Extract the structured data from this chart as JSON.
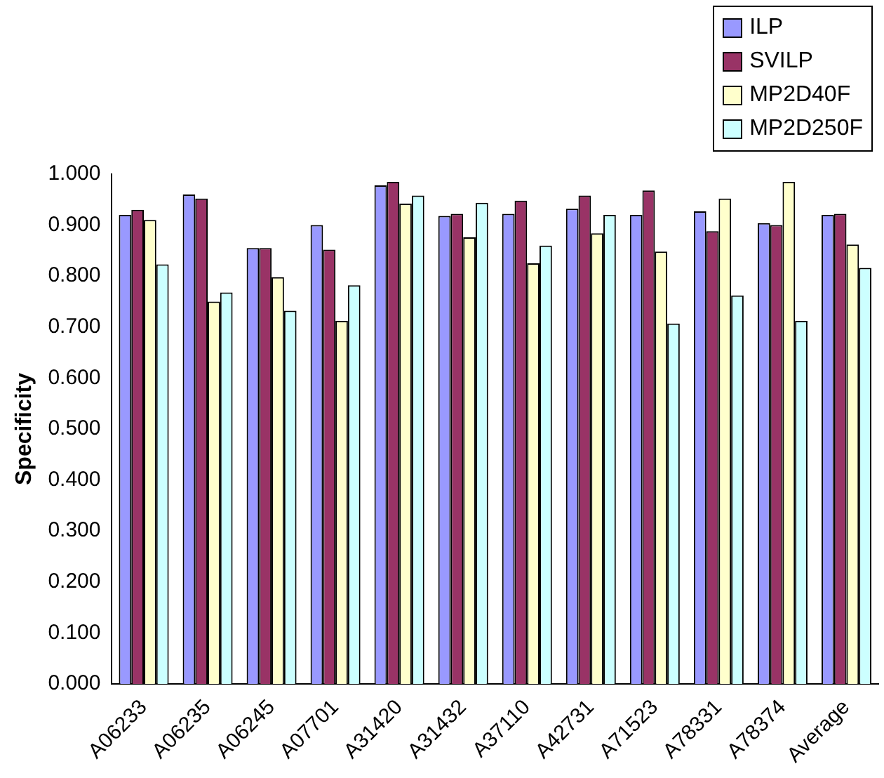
{
  "chart_data": {
    "type": "bar",
    "ylabel": "Specificity",
    "categories": [
      "A06233",
      "A06235",
      "A06245",
      "A07701",
      "A31420",
      "A31432",
      "A37110",
      "A42731",
      "A71523",
      "A78331",
      "A78374",
      "Average"
    ],
    "series": [
      {
        "name": "ILP",
        "color": "#9999ff",
        "values": [
          0.92,
          0.96,
          0.855,
          0.9,
          0.978,
          0.918,
          0.922,
          0.932,
          0.92,
          0.927,
          0.904,
          0.92
        ]
      },
      {
        "name": "SVILP",
        "color": "#993366",
        "values": [
          0.93,
          0.952,
          0.855,
          0.852,
          0.985,
          0.922,
          0.948,
          0.958,
          0.968,
          0.888,
          0.9,
          0.922
        ]
      },
      {
        "name": "MP2D40F",
        "color": "#ffffcc",
        "values": [
          0.91,
          0.75,
          0.798,
          0.712,
          0.942,
          0.876,
          0.825,
          0.884,
          0.848,
          0.952,
          0.985,
          0.862
        ]
      },
      {
        "name": "MP2D250F",
        "color": "#ccffff",
        "values": [
          0.823,
          0.768,
          0.732,
          0.782,
          0.958,
          0.944,
          0.86,
          0.92,
          0.707,
          0.762,
          0.712,
          0.816
        ]
      }
    ],
    "ylim": [
      0,
      1
    ],
    "yticks": [
      {
        "value": 0,
        "label": "0.000"
      },
      {
        "value": 0.1,
        "label": "0.100"
      },
      {
        "value": 0.2,
        "label": "0.200"
      },
      {
        "value": 0.3,
        "label": "0.300"
      },
      {
        "value": 0.4,
        "label": "0.400"
      },
      {
        "value": 0.5,
        "label": "0.500"
      },
      {
        "value": 0.6,
        "label": "0.600"
      },
      {
        "value": 0.7,
        "label": "0.700"
      },
      {
        "value": 0.8,
        "label": "0.800"
      },
      {
        "value": 0.9,
        "label": "0.900"
      },
      {
        "value": 1,
        "label": "1.000"
      }
    ],
    "grid": false,
    "legend": "top right"
  }
}
